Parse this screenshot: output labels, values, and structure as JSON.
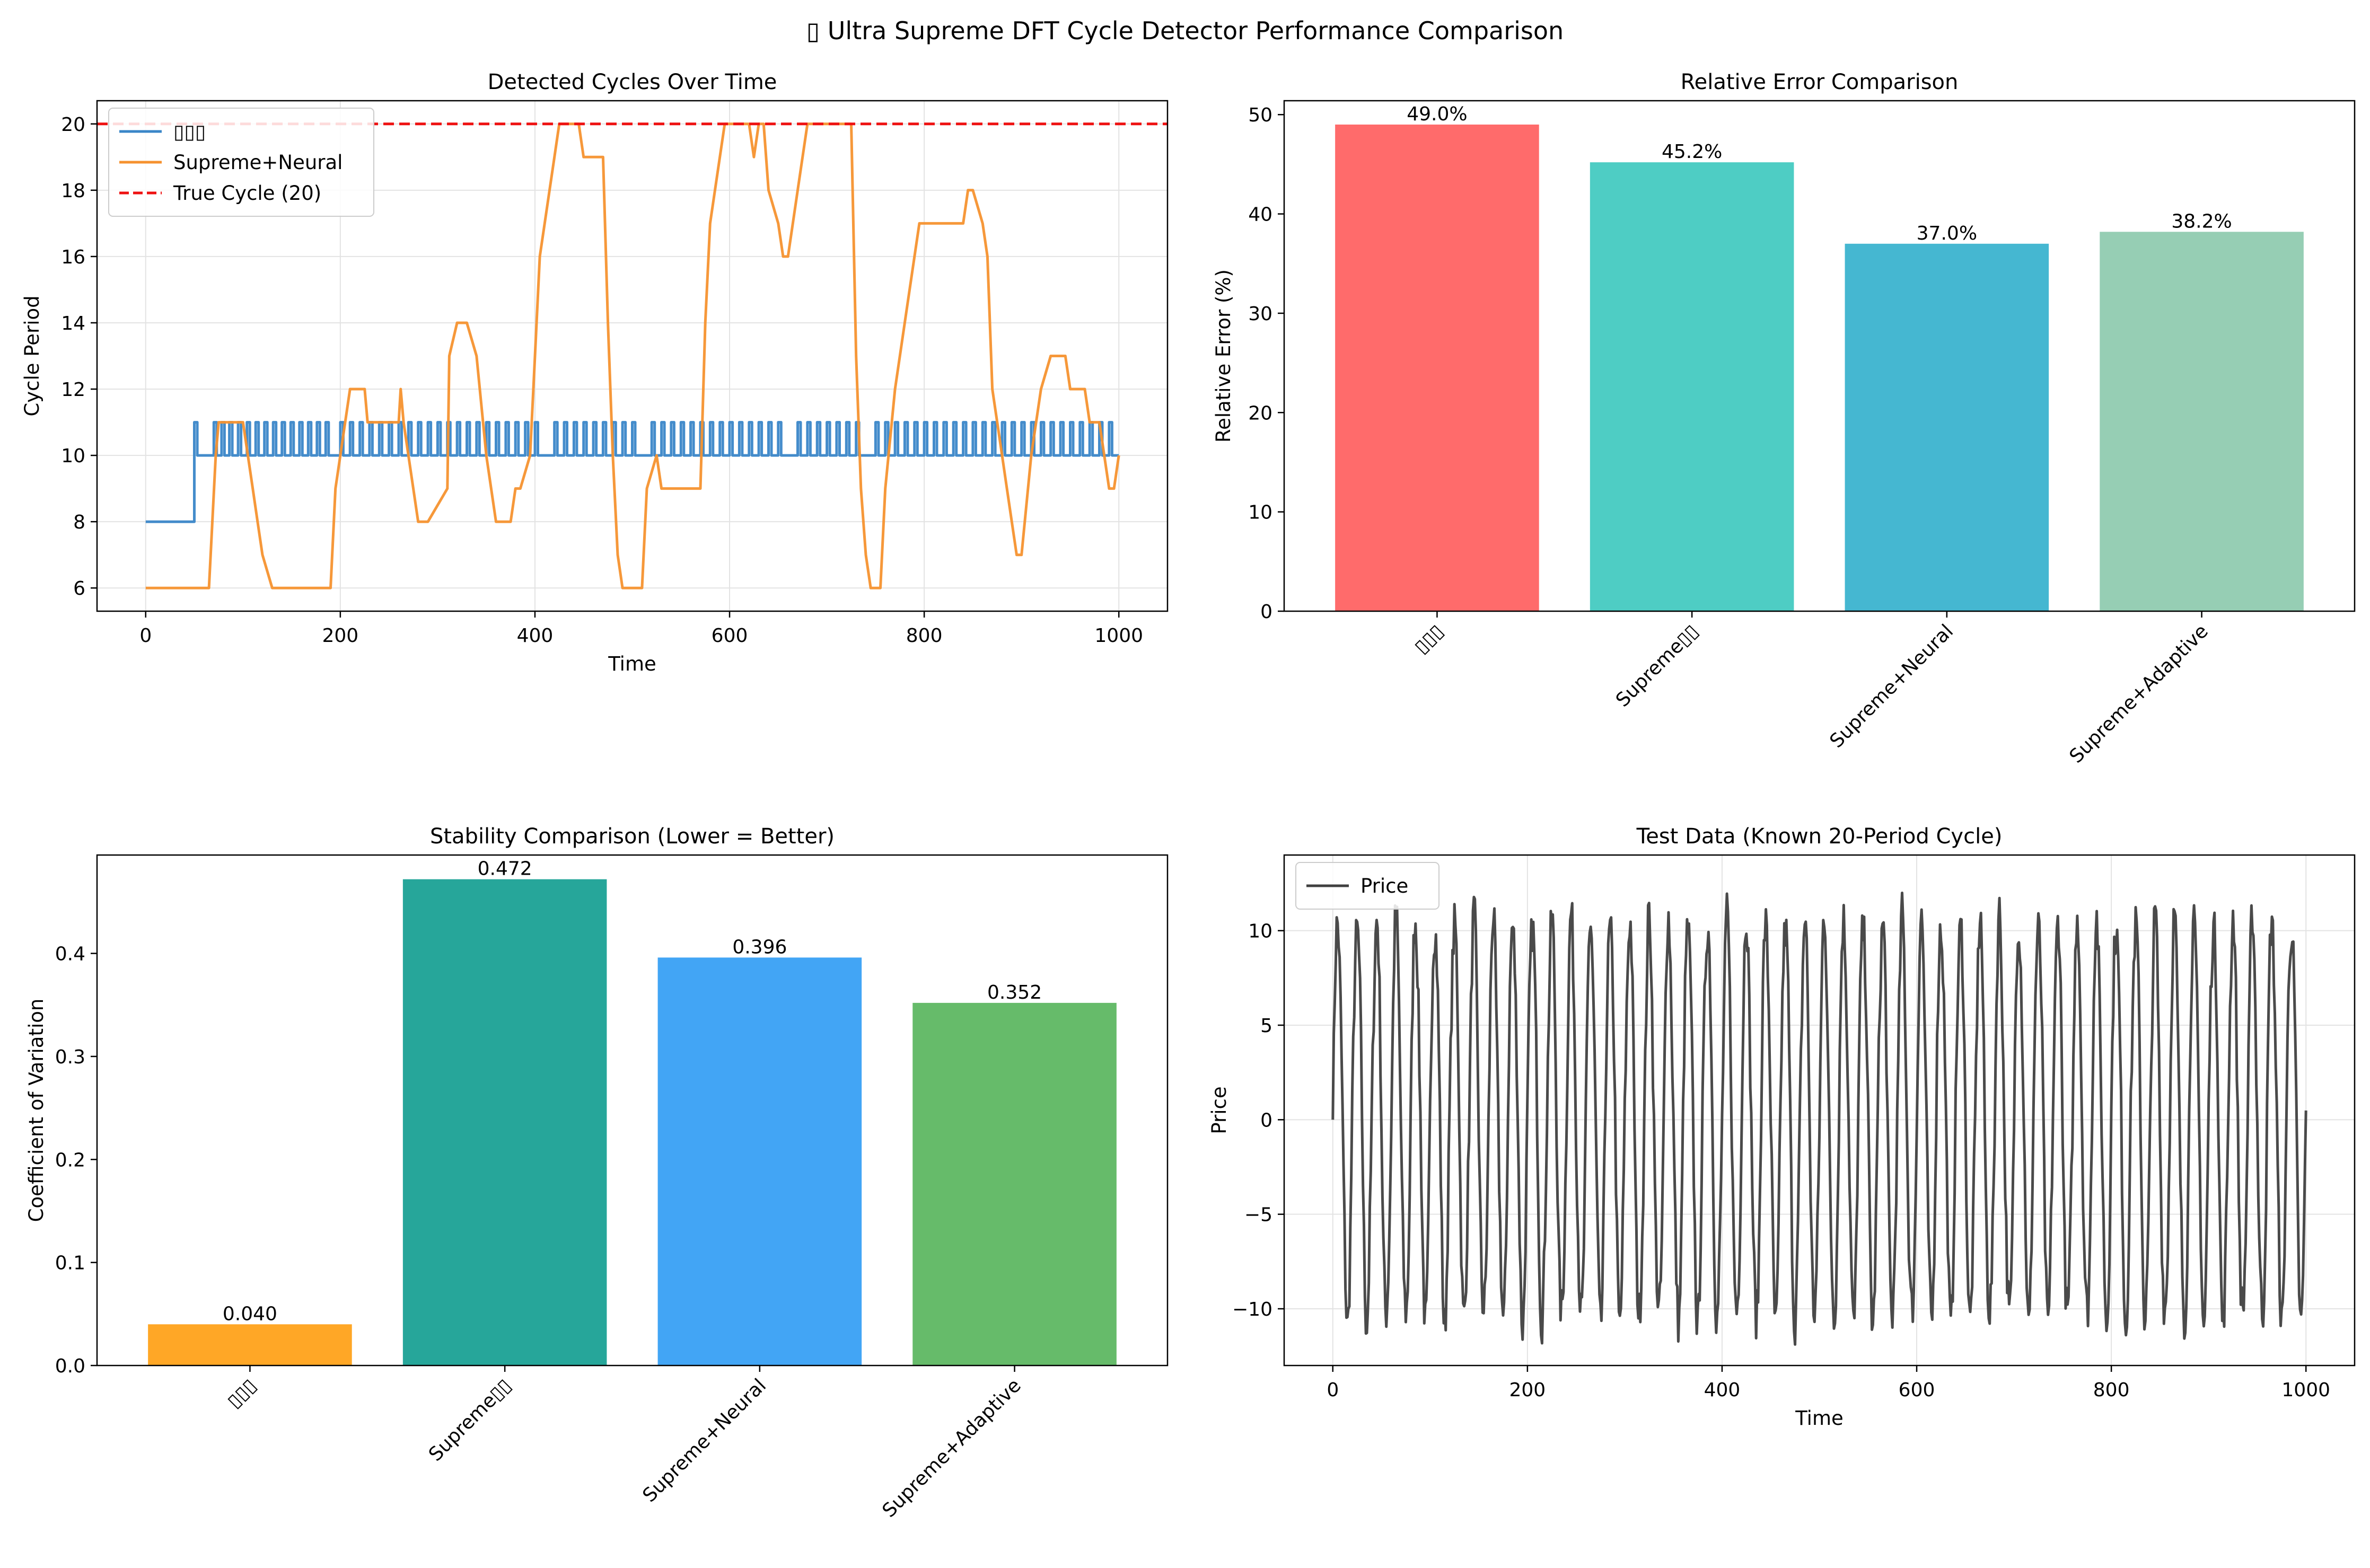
{
  "figure": {
    "title": "▯ Ultra Supreme DFT Cycle Detector Performance Comparison"
  },
  "chart_data": [
    {
      "id": "p1",
      "type": "line",
      "title": "Detected Cycles Over Time",
      "xlabel": "Time",
      "ylabel": "Cycle Period",
      "xlim": [
        -50,
        1050
      ],
      "ylim": [
        5.3,
        20.7
      ],
      "xticks": [
        0,
        200,
        400,
        600,
        800,
        1000
      ],
      "yticks": [
        6,
        8,
        10,
        12,
        14,
        16,
        18,
        20
      ],
      "grid": true,
      "legend": "top-left",
      "series": [
        {
          "name": "▯▯▯",
          "color": "#3a86c8",
          "style": "step-spikes",
          "x": [
            0,
            50,
            51
          ],
          "y": [
            8,
            8,
            10
          ],
          "spike_level": 11,
          "spike_x": [
            50,
            70,
            78,
            86,
            95,
            104,
            113,
            122,
            131,
            140,
            149,
            158,
            167,
            176,
            185,
            200,
            210,
            220,
            230,
            240,
            250,
            260,
            270,
            280,
            290,
            300,
            310,
            320,
            330,
            340,
            350,
            360,
            370,
            380,
            390,
            400,
            420,
            430,
            440,
            450,
            460,
            470,
            480,
            490,
            500,
            520,
            530,
            540,
            550,
            560,
            570,
            580,
            590,
            600,
            610,
            620,
            630,
            640,
            650,
            670,
            680,
            690,
            700,
            710,
            720,
            730,
            750,
            760,
            770,
            780,
            790,
            800,
            810,
            820,
            830,
            840,
            850,
            860,
            870,
            880,
            890,
            900,
            910,
            920,
            930,
            940,
            950,
            960,
            970,
            980,
            990
          ],
          "end_x": 1000
        },
        {
          "name": "Supreme+Neural",
          "color": "#f5922f",
          "style": "line",
          "x": [
            0,
            65,
            72,
            75,
            100,
            105,
            110,
            115,
            120,
            130,
            190,
            195,
            200,
            205,
            210,
            225,
            228,
            260,
            262,
            265,
            270,
            275,
            280,
            290,
            310,
            312,
            320,
            330,
            340,
            350,
            360,
            375,
            380,
            385,
            395,
            400,
            405,
            410,
            415,
            420,
            425,
            430,
            445,
            450,
            470,
            475,
            480,
            485,
            490,
            510,
            515,
            525,
            530,
            570,
            575,
            580,
            585,
            590,
            595,
            600,
            605,
            620,
            625,
            630,
            635,
            640,
            650,
            655,
            660,
            670,
            675,
            680,
            690,
            700,
            710,
            725,
            730,
            735,
            740,
            745,
            750,
            755,
            760,
            770,
            780,
            785,
            790,
            795,
            800,
            805,
            810,
            840,
            845,
            850,
            860,
            865,
            870,
            880,
            885,
            890,
            895,
            900,
            910,
            920,
            930,
            935,
            945,
            950,
            960,
            965,
            970,
            975,
            980,
            985,
            990,
            995,
            1000
          ],
          "y": [
            6,
            6,
            10,
            11,
            11,
            10,
            9,
            8,
            7,
            6,
            6,
            9,
            10,
            11,
            12,
            12,
            11,
            11,
            12,
            11,
            10,
            9,
            8,
            8,
            9,
            13,
            14,
            14,
            13,
            10,
            8,
            8,
            9,
            9,
            10,
            13,
            16,
            17,
            18,
            19,
            20,
            20,
            20,
            19,
            19,
            14,
            10,
            7,
            6,
            6,
            9,
            10,
            9,
            9,
            14,
            17,
            18,
            19,
            20,
            20,
            20,
            20,
            19,
            20,
            20,
            18,
            17,
            16,
            16,
            18,
            19,
            20,
            20,
            20,
            20,
            20,
            13,
            9,
            7,
            6,
            6,
            6,
            9,
            12,
            14,
            15,
            16,
            17,
            17,
            17,
            17,
            17,
            18,
            18,
            17,
            16,
            12,
            10,
            9,
            8,
            7,
            7,
            10,
            12,
            13,
            13,
            13,
            12,
            12,
            12,
            11,
            11,
            11,
            10,
            9,
            9,
            10
          ]
        },
        {
          "name": "True Cycle (20)",
          "color": "#ee1111",
          "style": "dashed",
          "x": [
            -50,
            1050
          ],
          "y": [
            20,
            20
          ]
        }
      ]
    },
    {
      "id": "p2",
      "type": "bar",
      "title": "Relative Error Comparison",
      "ylabel": "Relative Error (%)",
      "ylim": [
        0,
        51.4
      ],
      "yticks": [
        0,
        10,
        20,
        30,
        40,
        50
      ],
      "categories": [
        "▯▯▯",
        "Supreme▯▯",
        "Supreme+Neural",
        "Supreme+Adaptive"
      ],
      "values": [
        49.0,
        45.2,
        37.0,
        38.2
      ],
      "value_labels": [
        "49.0%",
        "45.2%",
        "37.0%",
        "38.2%"
      ],
      "colors": [
        "#ff6b6b",
        "#4ecdc4",
        "#45b7d1",
        "#96ceb4"
      ]
    },
    {
      "id": "p3",
      "type": "bar",
      "title": "Stability Comparison (Lower = Better)",
      "ylabel": "Coefficient of Variation",
      "ylim": [
        0,
        0.4955
      ],
      "yticks": [
        0.0,
        0.1,
        0.2,
        0.3,
        0.4
      ],
      "ytick_labels": [
        "0.0",
        "0.1",
        "0.2",
        "0.3",
        "0.4"
      ],
      "categories": [
        "▯▯▯",
        "Supreme▯▯",
        "Supreme+Neural",
        "Supreme+Adaptive"
      ],
      "values": [
        0.04,
        0.472,
        0.396,
        0.352
      ],
      "value_labels": [
        "0.040",
        "0.472",
        "0.396",
        "0.352"
      ],
      "colors": [
        "#ffa726",
        "#26a69a",
        "#42a5f5",
        "#66bb6a"
      ]
    },
    {
      "id": "p4",
      "type": "line",
      "title": "Test Data (Known 20-Period Cycle)",
      "xlabel": "Time",
      "ylabel": "Price",
      "xlim": [
        -50,
        1050
      ],
      "ylim": [
        -13,
        14
      ],
      "xticks": [
        0,
        200,
        400,
        600,
        800,
        1000
      ],
      "yticks": [
        -10,
        -5,
        0,
        5,
        10
      ],
      "grid": true,
      "legend": "top-left",
      "series": [
        {
          "name": "Price",
          "color": "#404040",
          "style": "oscillation",
          "period": 20,
          "amplitude": 10.5,
          "n": 1000
        }
      ]
    }
  ]
}
